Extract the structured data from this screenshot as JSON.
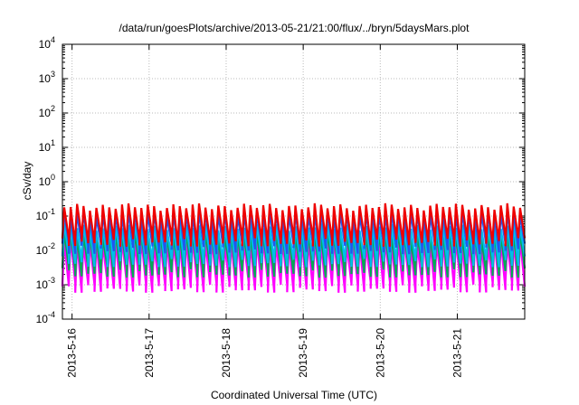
{
  "chart_data": {
    "type": "line",
    "title": "/data/run/goesPlots/archive/2013-05-21/21:00/flux/../bryn/5daysMars.plot",
    "xlabel": "Coordinated Universal Time (UTC)",
    "ylabel": "cSv/day",
    "yscale": "log",
    "ylim": [
      0.0001,
      10000
    ],
    "xlim": [
      "2013-05-15T21:00",
      "2013-05-21T21:00"
    ],
    "x_tick_labels": [
      "2013-5-16",
      "2013-5-17",
      "2013-5-18",
      "2013-5-19",
      "2013-5-20",
      "2013-5-21"
    ],
    "y_tick_labels": [
      {
        "base": "10",
        "exp": "-4"
      },
      {
        "base": "10",
        "exp": "-3"
      },
      {
        "base": "10",
        "exp": "-2"
      },
      {
        "base": "10",
        "exp": "-1"
      },
      {
        "base": "10",
        "exp": "0"
      },
      {
        "base": "10",
        "exp": "1"
      },
      {
        "base": "10",
        "exp": "2"
      },
      {
        "base": "10",
        "exp": "3"
      },
      {
        "base": "10",
        "exp": "4"
      }
    ],
    "grid": true,
    "periodic_pattern": {
      "cycles_per_day": 12,
      "description": "sawtooth: sharp rise then decay each cycle"
    },
    "series": [
      {
        "color": "#ff00ff",
        "peak": 0.018,
        "trough": 0.0009
      },
      {
        "color": "#00aa55",
        "peak": 0.03,
        "trough": 0.0025
      },
      {
        "color": "#00bbee",
        "peak": 0.05,
        "trough": 0.005
      },
      {
        "color": "#2255ee",
        "peak": 0.12,
        "trough": 0.012
      },
      {
        "color": "#ee0000",
        "peak": 0.19,
        "trough": 0.02
      }
    ]
  }
}
